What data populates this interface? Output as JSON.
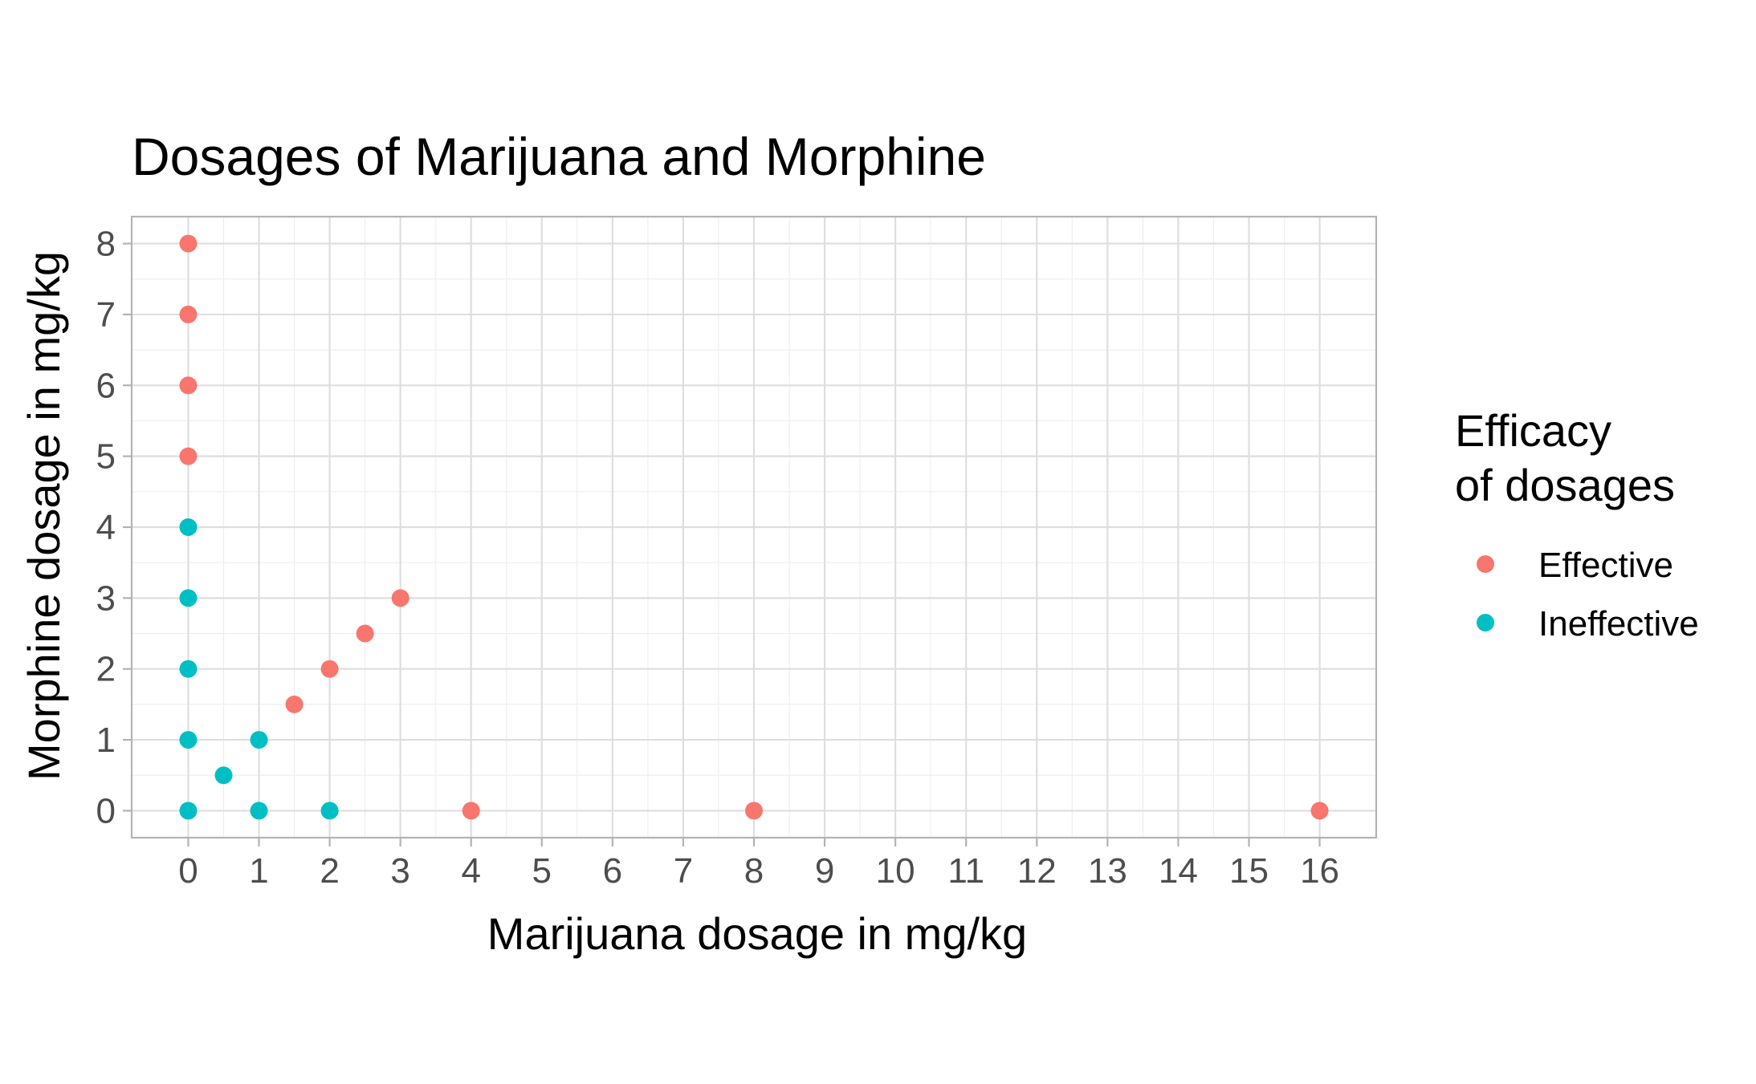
{
  "chart_data": {
    "type": "scatter",
    "title": "Dosages of Marijuana and Morphine",
    "xlabel": "Marijuana dosage in mg/kg",
    "ylabel": "Morphine dosage in mg/kg",
    "xlim": [
      -0.8,
      16.8
    ],
    "ylim": [
      -0.38,
      8.38
    ],
    "x_ticks": [
      0,
      1,
      2,
      3,
      4,
      5,
      6,
      7,
      8,
      9,
      10,
      11,
      12,
      13,
      14,
      15,
      16
    ],
    "y_ticks": [
      0,
      1,
      2,
      3,
      4,
      5,
      6,
      7,
      8
    ],
    "grid": true,
    "legend": {
      "title": [
        "Efficacy",
        "of dosages"
      ],
      "placement": "right"
    },
    "series": [
      {
        "name": "Effective",
        "color": "#F8766D",
        "points": [
          {
            "x": 0,
            "y": 8
          },
          {
            "x": 0,
            "y": 7
          },
          {
            "x": 0,
            "y": 6
          },
          {
            "x": 0,
            "y": 5
          },
          {
            "x": 1.5,
            "y": 1.5
          },
          {
            "x": 2,
            "y": 2
          },
          {
            "x": 2.5,
            "y": 2.5
          },
          {
            "x": 3,
            "y": 3
          },
          {
            "x": 4,
            "y": 0
          },
          {
            "x": 8,
            "y": 0
          },
          {
            "x": 16,
            "y": 0
          }
        ]
      },
      {
        "name": "Ineffective",
        "color": "#00BFC4",
        "points": [
          {
            "x": 0,
            "y": 4
          },
          {
            "x": 0,
            "y": 3
          },
          {
            "x": 0,
            "y": 2
          },
          {
            "x": 0,
            "y": 1
          },
          {
            "x": 0,
            "y": 0
          },
          {
            "x": 0.5,
            "y": 0.5
          },
          {
            "x": 1,
            "y": 1
          },
          {
            "x": 1,
            "y": 0
          },
          {
            "x": 2,
            "y": 0
          }
        ]
      }
    ]
  }
}
